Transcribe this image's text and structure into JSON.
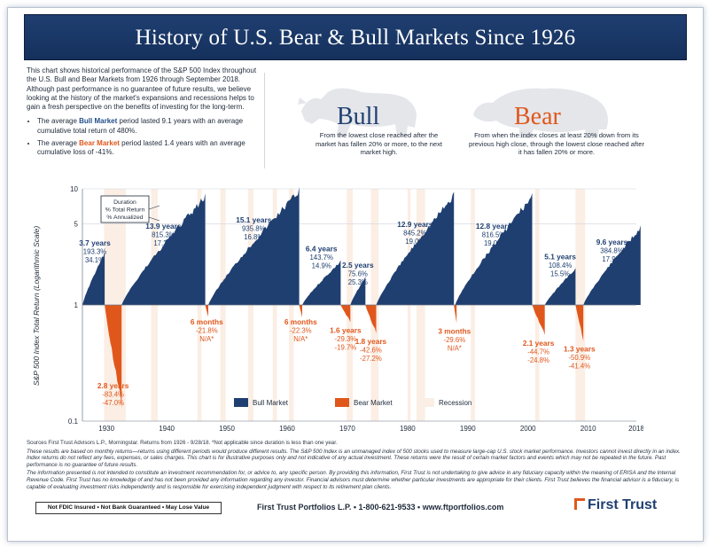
{
  "banner": {
    "title": "History of U.S. Bear & Bull Markets Since 1926"
  },
  "intro": {
    "paragraph": "This chart shows historical performance of the S&P 500 Index throughout the U.S. Bull and Bear Markets from 1926 through September 2018. Although past performance is no guarantee of future results, we believe looking at the history of the market's expansions and recessions helps to gain a fresh perspective on the benefits of investing for the long-term.",
    "bull_prefix": "The average ",
    "bull_term": "Bull Market",
    "bull_suffix": " period lasted 9.1 years with an average cumulative total return of 480%.",
    "bear_prefix": "The average ",
    "bear_term": "Bear Market",
    "bear_suffix": " period lasted 1.4 years with an average cumulative loss of -41%."
  },
  "bull": {
    "title": "Bull",
    "description": "From the lowest close reached after the market has fallen 20% or more, to the next market high."
  },
  "bear": {
    "title": "Bear",
    "description": "From when the index closes at least 20% down from its previous high close, through the lowest close reached after it has fallen 20% or more."
  },
  "colors": {
    "bull": "#1f3f71",
    "bear": "#e0571c",
    "recession": "#fbeee4",
    "brand_blue": "#1f3f71"
  },
  "chart_data": {
    "type": "area",
    "ylabel": "S&P 500 Index Total Return (Logarithmic Scale)",
    "y_scale": "log",
    "ylim": [
      0.1,
      10
    ],
    "y_ticks": [
      {
        "v": 10,
        "label": "10"
      },
      {
        "v": 5,
        "label": "5"
      },
      {
        "v": 1,
        "label": "1"
      },
      {
        "v": 0.1,
        "label": "0.1"
      }
    ],
    "xlim": [
      1926,
      2018
    ],
    "x_ticks": [
      {
        "v": 1930,
        "label": "1930"
      },
      {
        "v": 1940,
        "label": "1940"
      },
      {
        "v": 1950,
        "label": "1950"
      },
      {
        "v": 1960,
        "label": "1960"
      },
      {
        "v": 1970,
        "label": "1970"
      },
      {
        "v": 1980,
        "label": "1980"
      },
      {
        "v": 1990,
        "label": "1990"
      },
      {
        "v": 2000,
        "label": "2000"
      },
      {
        "v": 2010,
        "label": "2010"
      },
      {
        "v": 2018,
        "label": "2018"
      }
    ],
    "legend": {
      "position": "bottom",
      "items": [
        {
          "key": "bull",
          "label": "Bull Market"
        },
        {
          "key": "bear",
          "label": "Bear Market"
        },
        {
          "key": "recession",
          "label": "Recession"
        }
      ]
    },
    "annotation_key": {
      "lines": [
        "Duration",
        "% Total Return",
        "% Annualized"
      ]
    },
    "bull_markets": [
      {
        "start": 1926.0,
        "end": 1929.7,
        "peak": 2.93,
        "labels": [
          "3.7 years",
          "193.3%",
          "34.1%"
        ]
      },
      {
        "start": 1932.5,
        "end": 1946.4,
        "peak": 9.15,
        "labels": [
          "13.9 years",
          "815.3%",
          "17.2%"
        ]
      },
      {
        "start": 1946.9,
        "end": 1962.0,
        "peak": 10.36,
        "labels": [
          "15.1 years",
          "935.8%",
          "16.8%"
        ]
      },
      {
        "start": 1962.5,
        "end": 1968.9,
        "peak": 2.44,
        "labels": [
          "6.4 years",
          "143.7%",
          "14.9%"
        ]
      },
      {
        "start": 1970.5,
        "end": 1973.0,
        "peak": 1.76,
        "labels": [
          "2.5 years",
          "75.6%",
          "25.3%"
        ]
      },
      {
        "start": 1974.8,
        "end": 1987.7,
        "peak": 9.45,
        "labels": [
          "12.9 years",
          "845.2%",
          "19.0%"
        ]
      },
      {
        "start": 1987.9,
        "end": 2000.7,
        "peak": 9.17,
        "labels": [
          "12.8 years",
          "816.5%",
          "19.0%"
        ]
      },
      {
        "start": 2002.8,
        "end": 2007.9,
        "peak": 2.08,
        "labels": [
          "5.1 years",
          "108.4%",
          "15.5%"
        ]
      },
      {
        "start": 2009.2,
        "end": 2018.7,
        "peak": 4.85,
        "labels": [
          "9.6 years",
          "384.8%",
          "17.9%"
        ]
      }
    ],
    "bear_markets": [
      {
        "start": 1929.7,
        "end": 1932.5,
        "trough": 0.13,
        "labels": [
          "2.8 years",
          "-83.4%",
          "-47.0%"
        ]
      },
      {
        "start": 1946.4,
        "end": 1946.9,
        "trough": 0.79,
        "labels": [
          "6 months",
          "-21.8%",
          "N/A*"
        ]
      },
      {
        "start": 1962.0,
        "end": 1962.5,
        "trough": 0.78,
        "labels": [
          "6 months",
          "-22.3%",
          "N/A*"
        ]
      },
      {
        "start": 1968.9,
        "end": 1970.5,
        "trough": 0.71,
        "labels": [
          "1.6 years",
          "-29.3%",
          "-19.7%"
        ]
      },
      {
        "start": 1973.0,
        "end": 1974.8,
        "trough": 0.57,
        "labels": [
          "1.8 years",
          "-42.6%",
          "-27.2%"
        ]
      },
      {
        "start": 1987.7,
        "end": 1987.9,
        "trough": 0.7,
        "labels": [
          "3 months",
          "-29.6%",
          "N/A*"
        ]
      },
      {
        "start": 2000.7,
        "end": 2002.8,
        "trough": 0.55,
        "labels": [
          "2.1 years",
          "-44.7%",
          "-24.8%"
        ]
      },
      {
        "start": 2007.9,
        "end": 2009.2,
        "trough": 0.49,
        "labels": [
          "1.3 years",
          "-50.9%",
          "-41.4%"
        ]
      }
    ],
    "recessions": [
      [
        1929.6,
        1933.2
      ],
      [
        1937.4,
        1938.5
      ],
      [
        1945.1,
        1945.8
      ],
      [
        1948.9,
        1949.8
      ],
      [
        1953.5,
        1954.4
      ],
      [
        1957.6,
        1958.3
      ],
      [
        1960.3,
        1961.1
      ],
      [
        1969.9,
        1970.9
      ],
      [
        1973.9,
        1975.2
      ],
      [
        1980.0,
        1980.5
      ],
      [
        1981.5,
        1982.9
      ],
      [
        1990.5,
        1991.2
      ],
      [
        2001.2,
        2001.9
      ],
      [
        2007.9,
        2009.5
      ]
    ]
  },
  "footer": {
    "sources": "Sources First Trust Advisors L.P., Morningstar. Returns from 1926 - 9/28/18. *Not applicable since duration is less than one year.",
    "disclaimer": "These results are based on monthly returns—returns using different periods would produce different results. The S&P 500 Index is an unmanaged index of 500 stocks used to measure large-cap U.S. stock market performance. Investors cannot invest directly in an index. Index returns do not reflect any fees, expenses, or sales charges. This chart is for illustrative purposes only and not indicative of any actual investment. These returns were the result of certain market factors and events which may not be repeated in the future. Past performance is no guarantee of future results.",
    "fiduciary": "The information presented is not intended to constitute an investment recommendation for, or advice to, any specific person. By providing this information, First Trust is not undertaking to give advice in any fiduciary capacity within the meaning of ERISA and the Internal Revenue Code. First Trust has no knowledge of and has not been provided any information regarding any investor. Financial advisors must determine whether particular investments are appropriate for their clients. First Trust believes the financial advisor is a fiduciary, is capable of evaluating investment risks independently and is responsible for exercising independent judgment with respect to its retirement plan clients.",
    "not_fdic": "Not FDIC Insured • Not Bank Guaranteed • May Lose Value",
    "contact": "First Trust Portfolios L.P. • 1-800-621-9533 • www.ftportfolios.com",
    "logo": "First Trust"
  }
}
